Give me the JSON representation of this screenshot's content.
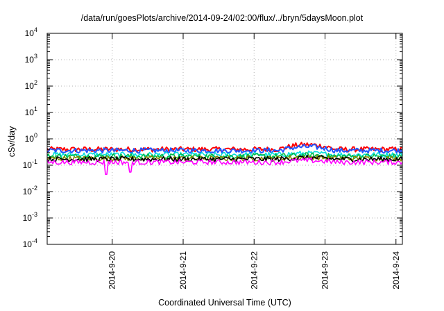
{
  "chart_data": {
    "type": "line",
    "title": "/data/run/goesPlots/archive/2014-09-24/02:00/flux/../bryn/5daysMoon.plot",
    "xlabel": "Coordinated Universal Time (UTC)",
    "ylabel": "cSv/day",
    "x_range": [
      "2014-09-19T02:00",
      "2014-09-24T02:10"
    ],
    "x_ticks": [
      "2014-9-20",
      "2014-9-21",
      "2014-9-22",
      "2014-9-23",
      "2014-9-24"
    ],
    "y_scale": "log",
    "ylim": [
      0.0001,
      10000
    ],
    "y_ticks": [
      {
        "base": "10",
        "exp": "-4"
      },
      {
        "base": "10",
        "exp": "-3"
      },
      {
        "base": "10",
        "exp": "-2"
      },
      {
        "base": "10",
        "exp": "-1"
      },
      {
        "base": "10",
        "exp": "0"
      },
      {
        "base": "10",
        "exp": "1"
      },
      {
        "base": "10",
        "exp": "2"
      },
      {
        "base": "10",
        "exp": "3"
      },
      {
        "base": "10",
        "exp": "4"
      }
    ],
    "grid": true,
    "legend": "none",
    "series": [
      {
        "color": "#ff0000",
        "approx_level": 0.4,
        "peak_level": 0.6
      },
      {
        "color": "#2255ff",
        "approx_level": 0.36,
        "peak_level": 0.5
      },
      {
        "color": "#00dddd",
        "approx_level": 0.25,
        "peak_level": 0.28
      },
      {
        "color": "#00bb44",
        "approx_level": 0.22,
        "peak_level": 0.24
      },
      {
        "color": "#888800",
        "approx_level": 0.18,
        "peak_level": 0.2
      },
      {
        "color": "#000000",
        "approx_level": 0.17,
        "peak_level": 0.19
      },
      {
        "color": "#ff00ff",
        "approx_level": 0.13,
        "peak_level": 0.15,
        "dips": [
          {
            "day": "2014-9-19",
            "value": 0.045
          },
          {
            "day": "2014-9-20",
            "value": 0.055
          }
        ]
      }
    ]
  }
}
